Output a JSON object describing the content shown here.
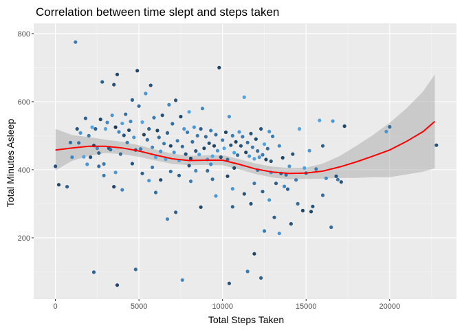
{
  "chart_data": {
    "type": "scatter",
    "title": "Correlation between time slept and steps taken",
    "xlabel": "Total Steps Taken",
    "ylabel": "Total Minutes Asleep",
    "xlim": [
      -1300,
      24000
    ],
    "ylim": [
      20,
      830
    ],
    "x_ticks": [
      0,
      5000,
      10000,
      15000,
      20000
    ],
    "x_tick_labels": [
      "0",
      "5000",
      "10000",
      "15000",
      "20000"
    ],
    "y_ticks": [
      200,
      400,
      600,
      800
    ],
    "y_tick_labels": [
      "200",
      "400",
      "600",
      "800"
    ],
    "grid": true,
    "legend": "none",
    "colors": {
      "panel": "#ebebeb",
      "grid_major": "#ffffff",
      "grid_minor": "#f5f5f5",
      "point_dark": "#132b43",
      "point_light": "#56b1f7",
      "smooth_line": "#ff0000",
      "ribbon": "#999999"
    },
    "points": [
      [
        0,
        410,
        0.3
      ],
      [
        200,
        356,
        0.2
      ],
      [
        700,
        350,
        0.4
      ],
      [
        900,
        480,
        0.5
      ],
      [
        1000,
        437,
        0.7
      ],
      [
        1200,
        775,
        0.6
      ],
      [
        1300,
        520,
        0.3
      ],
      [
        1400,
        479,
        0.5
      ],
      [
        1500,
        508,
        0.8
      ],
      [
        1700,
        438,
        0.9
      ],
      [
        1800,
        551,
        0.4
      ],
      [
        1900,
        416,
        0.8
      ],
      [
        2000,
        500,
        0.6
      ],
      [
        2100,
        437,
        0.3
      ],
      [
        2200,
        525,
        0.9
      ],
      [
        2300,
        471,
        0.2
      ],
      [
        2400,
        520,
        0.4
      ],
      [
        2500,
        463,
        0.7
      ],
      [
        2600,
        449,
        0.4
      ],
      [
        2700,
        548,
        0.2
      ],
      [
        2800,
        658,
        0.4
      ],
      [
        2900,
        417,
        0.6
      ],
      [
        3000,
        520,
        0.9
      ],
      [
        3100,
        539,
        0.7
      ],
      [
        3200,
        463,
        0.3
      ],
      [
        3300,
        459,
        0.5
      ],
      [
        3400,
        560,
        0.8
      ],
      [
        3500,
        650,
        0.3
      ],
      [
        3600,
        525,
        0.1
      ],
      [
        3700,
        680,
        0.2
      ],
      [
        3800,
        511,
        0.7
      ],
      [
        3900,
        446,
        0.5
      ],
      [
        4000,
        536,
        0.9
      ],
      [
        4100,
        501,
        0.3
      ],
      [
        4200,
        563,
        0.5
      ],
      [
        4300,
        480,
        0.6
      ],
      [
        4400,
        516,
        0.2
      ],
      [
        4500,
        542,
        0.7
      ],
      [
        4600,
        605,
        0.4
      ],
      [
        4700,
        495,
        0.8
      ],
      [
        4800,
        458,
        0.3
      ],
      [
        4900,
        691,
        0.2
      ],
      [
        5000,
        587,
        0.5
      ],
      [
        5100,
        461,
        0.6
      ],
      [
        5200,
        540,
        0.9
      ],
      [
        5300,
        503,
        0.2
      ],
      [
        5400,
        624,
        0.8
      ],
      [
        5500,
        488,
        0.5
      ],
      [
        5600,
        520,
        0.4
      ],
      [
        5700,
        648,
        0.3
      ],
      [
        5800,
        466,
        0.7
      ],
      [
        5900,
        553,
        0.6
      ],
      [
        6000,
        437,
        0.9
      ],
      [
        6100,
        515,
        0.2
      ],
      [
        6200,
        495,
        0.5
      ],
      [
        6300,
        454,
        0.8
      ],
      [
        6400,
        560,
        0.3
      ],
      [
        6500,
        477,
        0.6
      ],
      [
        6600,
        431,
        0.9
      ],
      [
        6700,
        508,
        0.4
      ],
      [
        6800,
        591,
        0.7
      ],
      [
        6900,
        470,
        0.2
      ],
      [
        7000,
        535,
        0.5
      ],
      [
        7100,
        451,
        0.8
      ],
      [
        7200,
        604,
        0.3
      ],
      [
        7300,
        485,
        0.6
      ],
      [
        7400,
        427,
        0.9
      ],
      [
        7500,
        556,
        0.2
      ],
      [
        7600,
        468,
        0.5
      ],
      [
        7700,
        520,
        0.8
      ],
      [
        7800,
        446,
        0.3
      ],
      [
        7900,
        510,
        0.6
      ],
      [
        8000,
        570,
        0.9
      ],
      [
        8100,
        433,
        0.2
      ],
      [
        8200,
        482,
        0.5
      ],
      [
        8300,
        525,
        0.8
      ],
      [
        8400,
        455,
        0.3
      ],
      [
        8500,
        500,
        0.6
      ],
      [
        8600,
        445,
        0.9
      ],
      [
        8700,
        520,
        0.4
      ],
      [
        8800,
        580,
        0.7
      ],
      [
        8900,
        463,
        0.2
      ],
      [
        9000,
        497,
        0.5
      ],
      [
        9100,
        430,
        0.8
      ],
      [
        9200,
        478,
        0.3
      ],
      [
        9300,
        515,
        0.6
      ],
      [
        9400,
        440,
        0.9
      ],
      [
        9500,
        470,
        0.2
      ],
      [
        9600,
        503,
        0.5
      ],
      [
        9700,
        456,
        0.8
      ],
      [
        9800,
        700,
        0.2
      ],
      [
        9900,
        437,
        0.3
      ],
      [
        10000,
        487,
        0.6
      ],
      [
        10100,
        463,
        0.9
      ],
      [
        10200,
        510,
        0.2
      ],
      [
        10300,
        430,
        0.5
      ],
      [
        10400,
        556,
        0.8
      ],
      [
        10500,
        472,
        0.3
      ],
      [
        10600,
        500,
        0.6
      ],
      [
        10700,
        450,
        0.9
      ],
      [
        10800,
        482,
        0.2
      ],
      [
        10900,
        443,
        0.5
      ],
      [
        11000,
        511,
        0.8
      ],
      [
        11100,
        470,
        0.3
      ],
      [
        11200,
        497,
        0.6
      ],
      [
        11300,
        613,
        0.9
      ],
      [
        11400,
        451,
        0.2
      ],
      [
        11500,
        480,
        0.5
      ],
      [
        11600,
        440,
        0.8
      ],
      [
        11700,
        506,
        0.3
      ],
      [
        11800,
        466,
        0.6
      ],
      [
        11900,
        432,
        0.9
      ],
      [
        12000,
        490,
        0.2
      ],
      [
        12100,
        455,
        0.5
      ],
      [
        12200,
        437,
        0.8
      ],
      [
        12300,
        520,
        0.3
      ],
      [
        12400,
        444,
        0.6
      ],
      [
        12500,
        475,
        0.9
      ],
      [
        12600,
        430,
        0.2
      ],
      [
        12700,
        462,
        0.5
      ],
      [
        12800,
        512,
        0.8
      ],
      [
        12900,
        425,
        0.3
      ],
      [
        13000,
        498,
        0.6
      ],
      [
        13200,
        360,
        0.4
      ],
      [
        13400,
        470,
        0.7
      ],
      [
        13600,
        435,
        0.2
      ],
      [
        13800,
        385,
        0.5
      ],
      [
        14000,
        410,
        0.8
      ],
      [
        14200,
        446,
        0.3
      ],
      [
        14400,
        370,
        0.6
      ],
      [
        14600,
        520,
        0.9
      ],
      [
        14800,
        280,
        0.2
      ],
      [
        15000,
        390,
        0.5
      ],
      [
        15200,
        456,
        0.8
      ],
      [
        15400,
        292,
        0.3
      ],
      [
        15600,
        402,
        0.6
      ],
      [
        15800,
        545,
        0.9
      ],
      [
        16000,
        470,
        0.4
      ],
      [
        16200,
        375,
        0.7
      ],
      [
        16500,
        231,
        0.5
      ],
      [
        16600,
        543,
        0.8
      ],
      [
        16800,
        381,
        0.3
      ],
      [
        17300,
        528,
        0.2
      ],
      [
        19800,
        512,
        0.8
      ],
      [
        20000,
        526,
        0.5
      ],
      [
        22800,
        472,
        0.3
      ],
      [
        2300,
        99,
        0.4
      ],
      [
        3700,
        61,
        0.2
      ],
      [
        4800,
        107,
        0.5
      ],
      [
        7600,
        76,
        0.7
      ],
      [
        10400,
        66,
        0.3
      ],
      [
        11500,
        101,
        0.6
      ],
      [
        12300,
        82,
        0.4
      ],
      [
        11900,
        153,
        0.2
      ],
      [
        12500,
        220,
        0.6
      ],
      [
        13100,
        260,
        0.4
      ],
      [
        13400,
        213,
        0.8
      ],
      [
        14100,
        241,
        0.3
      ],
      [
        15300,
        277,
        0.2
      ],
      [
        6000,
        333,
        0.5
      ],
      [
        6700,
        255,
        0.7
      ],
      [
        7200,
        275,
        0.4
      ],
      [
        8700,
        290,
        0.2
      ],
      [
        9600,
        323,
        0.8
      ],
      [
        10600,
        291,
        0.4
      ],
      [
        11700,
        300,
        0.3
      ],
      [
        12800,
        311,
        0.8
      ],
      [
        14500,
        300,
        0.5
      ],
      [
        4000,
        341,
        0.7
      ],
      [
        5200,
        389,
        0.4
      ],
      [
        6300,
        370,
        0.2
      ],
      [
        8100,
        366,
        0.6
      ],
      [
        9100,
        397,
        0.5
      ],
      [
        10600,
        344,
        0.8
      ],
      [
        11300,
        329,
        0.3
      ],
      [
        12400,
        336,
        0.4
      ],
      [
        13700,
        351,
        0.7
      ],
      [
        2900,
        383,
        0.6
      ],
      [
        3500,
        350,
        0.2
      ],
      [
        5600,
        368,
        0.8
      ],
      [
        7400,
        383,
        0.4
      ],
      [
        8400,
        397,
        0.7
      ],
      [
        9400,
        372,
        0.5
      ],
      [
        10300,
        381,
        0.2
      ],
      [
        11900,
        360,
        0.6
      ],
      [
        12900,
        392,
        0.8
      ],
      [
        13900,
        343,
        0.4
      ],
      [
        16000,
        325,
        0.5
      ],
      [
        2600,
        410,
        0.5
      ],
      [
        3600,
        392,
        0.8
      ],
      [
        4600,
        418,
        0.3
      ],
      [
        5800,
        407,
        0.6
      ],
      [
        6900,
        395,
        0.5
      ],
      [
        8000,
        412,
        0.3
      ],
      [
        9300,
        416,
        0.7
      ],
      [
        10700,
        405,
        0.2
      ],
      [
        12100,
        399,
        0.6
      ],
      [
        13500,
        389,
        0.4
      ],
      [
        14900,
        405,
        0.9
      ],
      [
        16900,
        371,
        0.6
      ],
      [
        17100,
        364,
        0.3
      ]
    ],
    "smooth": [
      [
        0,
        458
      ],
      [
        1000,
        464
      ],
      [
        2000,
        469
      ],
      [
        3000,
        469
      ],
      [
        4000,
        464
      ],
      [
        5000,
        455
      ],
      [
        6000,
        443
      ],
      [
        7000,
        432
      ],
      [
        8000,
        427
      ],
      [
        9000,
        428
      ],
      [
        10000,
        428
      ],
      [
        11000,
        416
      ],
      [
        12000,
        402
      ],
      [
        13000,
        393
      ],
      [
        14000,
        389
      ],
      [
        15000,
        390
      ],
      [
        16000,
        396
      ],
      [
        17000,
        408
      ],
      [
        18000,
        423
      ],
      [
        19000,
        440
      ],
      [
        20000,
        458
      ],
      [
        21000,
        483
      ],
      [
        22000,
        512
      ],
      [
        22700,
        542
      ]
    ],
    "ribbon_upper": [
      [
        0,
        520
      ],
      [
        1000,
        502
      ],
      [
        2000,
        496
      ],
      [
        3000,
        488
      ],
      [
        4000,
        482
      ],
      [
        5000,
        472
      ],
      [
        6000,
        459
      ],
      [
        7000,
        447
      ],
      [
        8000,
        441
      ],
      [
        9000,
        442
      ],
      [
        10000,
        443
      ],
      [
        11000,
        431
      ],
      [
        12000,
        418
      ],
      [
        13000,
        409
      ],
      [
        14000,
        405
      ],
      [
        15000,
        406
      ],
      [
        16000,
        418
      ],
      [
        17000,
        440
      ],
      [
        18000,
        470
      ],
      [
        19000,
        502
      ],
      [
        20000,
        538
      ],
      [
        21000,
        580
      ],
      [
        22000,
        630
      ],
      [
        22700,
        680
      ]
    ],
    "ribbon_lower": [
      [
        0,
        398
      ],
      [
        1000,
        426
      ],
      [
        2000,
        441
      ],
      [
        3000,
        449
      ],
      [
        4000,
        446
      ],
      [
        5000,
        438
      ],
      [
        6000,
        427
      ],
      [
        7000,
        417
      ],
      [
        8000,
        413
      ],
      [
        9000,
        414
      ],
      [
        10000,
        413
      ],
      [
        11000,
        401
      ],
      [
        12000,
        387
      ],
      [
        13000,
        377
      ],
      [
        14000,
        372
      ],
      [
        15000,
        373
      ],
      [
        16000,
        374
      ],
      [
        17000,
        376
      ],
      [
        18000,
        376
      ],
      [
        19000,
        378
      ],
      [
        20000,
        378
      ],
      [
        21000,
        386
      ],
      [
        22000,
        394
      ],
      [
        22700,
        404
      ]
    ]
  }
}
